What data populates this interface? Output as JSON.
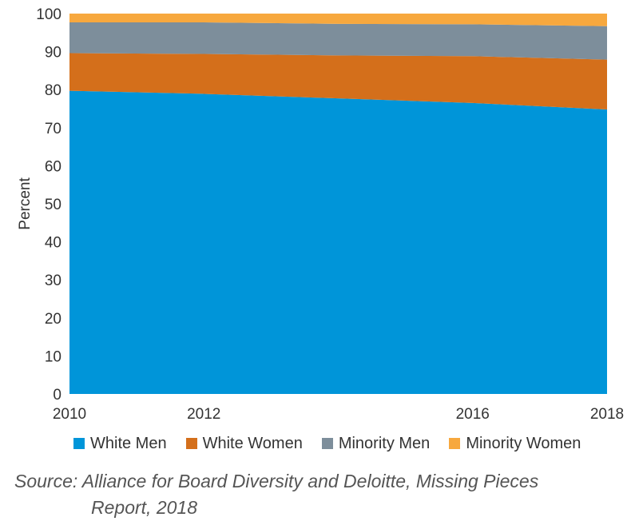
{
  "chart_data": {
    "type": "area",
    "stacked": true,
    "title": "",
    "xlabel": "",
    "ylabel": "Percent",
    "ylim": [
      0,
      100
    ],
    "yticks": [
      "0",
      "10",
      "20",
      "30",
      "40",
      "50",
      "60",
      "70",
      "80",
      "90",
      "100"
    ],
    "x": [
      2010,
      2012,
      2014,
      2016,
      2018
    ],
    "xticks": [
      "2010",
      "2012",
      "2016",
      "2018"
    ],
    "grid": false,
    "legend_position": "bottom",
    "series": [
      {
        "name": "White Men",
        "values": [
          79.7,
          78.9,
          77.7,
          76.5,
          74.8
        ],
        "color": "#0095d9"
      },
      {
        "name": "White Women",
        "values": [
          9.9,
          10.5,
          11.3,
          12.3,
          13.1
        ],
        "color": "#d46f1b"
      },
      {
        "name": "Minority Men",
        "values": [
          8.1,
          8.3,
          8.3,
          8.4,
          8.8
        ],
        "color": "#7d8e9b"
      },
      {
        "name": "Minority Women",
        "values": [
          2.3,
          2.3,
          2.7,
          2.8,
          3.3
        ],
        "color": "#f7a83e"
      }
    ]
  },
  "source": {
    "line1": "Source: Alliance for Board Diversity and Deloitte, Missing Pieces",
    "line2": "Report, 2018"
  }
}
